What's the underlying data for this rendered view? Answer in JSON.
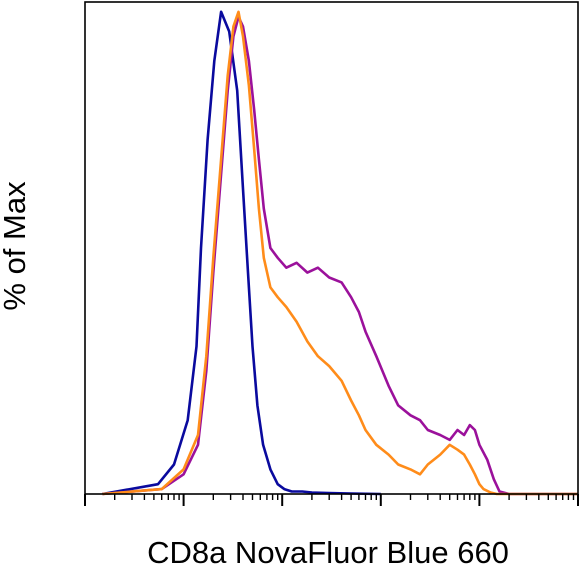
{
  "chart_data": {
    "type": "line",
    "title": "",
    "xlabel": "CD8a NovaFluor Blue 660",
    "ylabel": "% of Max",
    "x_scale": "log",
    "xlim": [
      10,
      1000000
    ],
    "ylim": [
      0,
      100
    ],
    "grid": false,
    "legend": "none",
    "x_tick_labels": [],
    "y_tick_labels": [],
    "series": [
      {
        "color": "#0a0a9e",
        "x": [
          15,
          55,
          80,
          110,
          135,
          150,
          175,
          205,
          240,
          290,
          350,
          400,
          450,
          500,
          560,
          640,
          760,
          900,
          1050,
          1250,
          1600,
          2000,
          3000,
          5000,
          10000
        ],
        "y": [
          0,
          2,
          6,
          15,
          30,
          50,
          72,
          88,
          98,
          94,
          82,
          62,
          45,
          30,
          18,
          10,
          5,
          2,
          1,
          0.5,
          0.5,
          0.3,
          0.2,
          0.1,
          0
        ]
      },
      {
        "color": "#9b119b",
        "x": [
          15,
          60,
          100,
          140,
          170,
          200,
          240,
          280,
          320,
          360,
          400,
          460,
          520,
          580,
          650,
          760,
          900,
          1100,
          1400,
          1800,
          2300,
          3000,
          4000,
          5000,
          6000,
          7000,
          9000,
          12000,
          15000,
          20000,
          25000,
          30000,
          40000,
          50000,
          60000,
          70000,
          80000,
          90000,
          100000,
          120000,
          140000,
          160000,
          200000,
          1000000
        ],
        "y": [
          0,
          1,
          4,
          10,
          25,
          45,
          65,
          82,
          93,
          97,
          95,
          88,
          78,
          68,
          58,
          50,
          48,
          46,
          47,
          45,
          46,
          44,
          43,
          40,
          37,
          33,
          28,
          22,
          18,
          16,
          15,
          13,
          12,
          11,
          13,
          12,
          14,
          13,
          10,
          7,
          3,
          0.5,
          0,
          0
        ]
      },
      {
        "color": "#ff8c1a",
        "x": [
          15,
          60,
          100,
          140,
          170,
          200,
          240,
          280,
          320,
          360,
          400,
          460,
          520,
          580,
          650,
          760,
          900,
          1100,
          1400,
          1800,
          2300,
          3000,
          4000,
          5000,
          6000,
          7000,
          9000,
          12000,
          15000,
          20000,
          25000,
          30000,
          40000,
          50000,
          60000,
          70000,
          80000,
          90000,
          100000,
          110000,
          130000,
          150000,
          1000000
        ],
        "y": [
          0,
          1,
          5,
          12,
          28,
          48,
          68,
          85,
          95,
          98,
          93,
          83,
          70,
          58,
          48,
          42,
          40,
          38,
          35,
          31,
          28,
          26,
          23,
          19,
          16,
          13,
          10,
          8,
          6,
          5,
          4,
          6,
          8,
          10,
          9,
          8,
          6,
          4,
          2,
          1,
          0.3,
          0,
          0
        ]
      }
    ]
  }
}
